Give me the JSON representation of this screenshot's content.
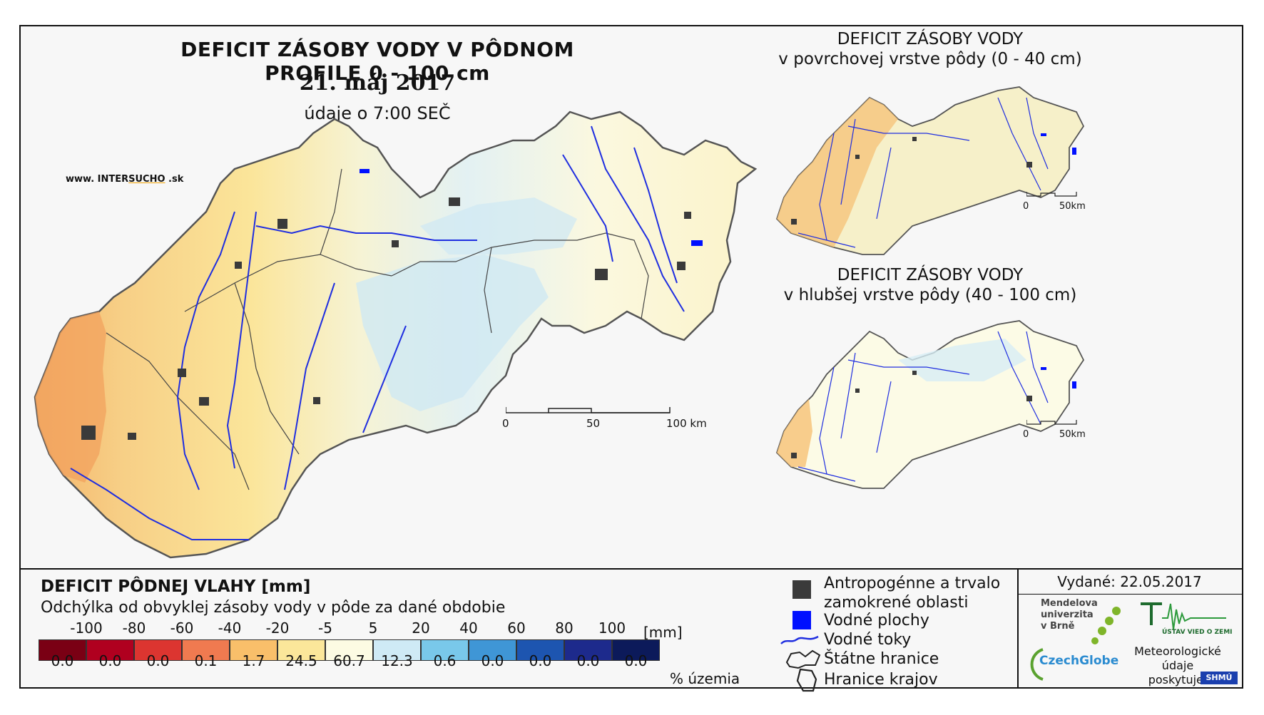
{
  "main": {
    "title": "DEFICIT ZÁSOBY VODY V PÔDNOM PROFILE 0 - 100 cm",
    "date": "21. máj 2017",
    "time": "údaje o 7:00 SEČ",
    "logo": "www. INTERSUCHO .sk",
    "logo_prefix": "www. INTER",
    "logo_accent": "SUCHO",
    "logo_suffix": " .sk",
    "scale": {
      "labels": [
        "0",
        "50",
        "100 km"
      ]
    }
  },
  "inset_top": {
    "title_line1": "DEFICIT ZÁSOBY VODY",
    "title_line2": "v povrchovej vrstve pôdy (0 - 40 cm)",
    "scale": {
      "labels": [
        "0",
        "50km"
      ]
    }
  },
  "inset_bottom": {
    "title_line1": "DEFICIT ZÁSOBY VODY",
    "title_line2": "v hlubšej vrstve pôdy (40 - 100 cm)",
    "scale": {
      "labels": [
        "0",
        "50km"
      ]
    }
  },
  "legend": {
    "title": "DEFICIT PÔDNEJ VLAHY [mm]",
    "subtitle": "Odchýlka od obvyklej zásoby vody v pôde za dané obdobie",
    "ticks": [
      "-100",
      "-80",
      "-60",
      "-40",
      "-20",
      "-5",
      "5",
      "20",
      "40",
      "60",
      "80",
      "100"
    ],
    "unit": "[mm]",
    "classes": [
      {
        "color": "#7a0014",
        "pct": "0.0"
      },
      {
        "color": "#b0001f",
        "pct": "0.0"
      },
      {
        "color": "#dc3530",
        "pct": "0.0"
      },
      {
        "color": "#f07a50",
        "pct": "0.1"
      },
      {
        "color": "#f9bf6a",
        "pct": "1.7"
      },
      {
        "color": "#fbe79a",
        "pct": "24.5"
      },
      {
        "color": "#fcfbe3",
        "pct": "60.7"
      },
      {
        "color": "#cfeaf5",
        "pct": "12.3"
      },
      {
        "color": "#79c8ea",
        "pct": "0.6"
      },
      {
        "color": "#3f96d6",
        "pct": "0.0"
      },
      {
        "color": "#1d55b0",
        "pct": "0.0"
      },
      {
        "color": "#1d2a8c",
        "pct": "0.0"
      },
      {
        "color": "#0c1a5a",
        "pct": "0.0"
      }
    ],
    "pct_label": "% územia"
  },
  "symbols": {
    "anthro_line1": "Antropogénne a trvalo",
    "anthro_line2": "zamokrené oblasti",
    "water_bodies": "Vodné plochy",
    "rivers": "Vodné toky",
    "state_border": "Štátne hranice",
    "region_border": "Hranice krajov"
  },
  "issued": "Vydané: 22.05.2017",
  "orgs": {
    "mendel_line1": "Mendelova",
    "mendel_line2": "univerzita",
    "mendel_line3": "v Brně",
    "czechglobe": "CzechGlobe",
    "uvgz": "ÚSTAV VIED O ZEMI",
    "meteo_line1": "Meteorologické",
    "meteo_line2": "údaje",
    "meteo_line3": "poskytuje:",
    "shmu": "SHMÚ"
  },
  "colors": {
    "land_dry": "#fbe59a",
    "land_dry_strong": "#f6c275",
    "land_neutral": "#fcfbe3",
    "land_wet": "#cfeaf5",
    "river": "#1f2ee0",
    "water": "#0010ff",
    "urban": "#3a3a3a"
  }
}
